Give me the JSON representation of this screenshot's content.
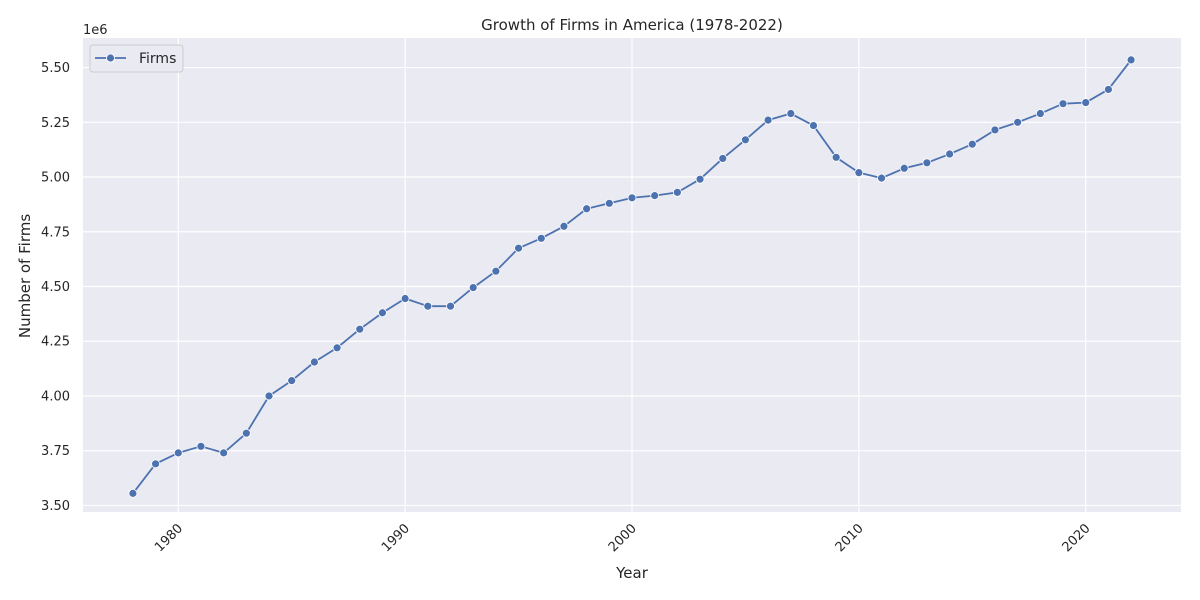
{
  "chart_data": {
    "type": "line",
    "title": "Growth of Firms in America (1978-2022)",
    "xlabel": "Year",
    "ylabel": "Number of Firms",
    "y_offset_text": "1e6",
    "xlim": [
      1975.8,
      2024.2
    ],
    "ylim": [
      3.47,
      5.635
    ],
    "x_ticks": [
      1980,
      1990,
      2000,
      2010,
      2020
    ],
    "y_ticks": [
      3.5,
      3.75,
      4.0,
      4.25,
      4.5,
      4.75,
      5.0,
      5.25,
      5.5
    ],
    "y_tick_labels": [
      "3.50",
      "3.75",
      "4.00",
      "4.25",
      "4.50",
      "4.75",
      "5.00",
      "5.25",
      "5.50"
    ],
    "grid": true,
    "legend_placement": "top-left",
    "series": [
      {
        "name": "Firms",
        "color": "#4c72b0",
        "x": [
          1978,
          1979,
          1980,
          1981,
          1982,
          1983,
          1984,
          1985,
          1986,
          1987,
          1988,
          1989,
          1990,
          1991,
          1992,
          1993,
          1994,
          1995,
          1996,
          1997,
          1998,
          1999,
          2000,
          2001,
          2002,
          2003,
          2004,
          2005,
          2006,
          2007,
          2008,
          2009,
          2010,
          2011,
          2012,
          2013,
          2014,
          2015,
          2016,
          2017,
          2018,
          2019,
          2020,
          2021,
          2022
        ],
        "y": [
          3.555,
          3.69,
          3.74,
          3.77,
          3.74,
          3.83,
          4.0,
          4.07,
          4.155,
          4.22,
          4.305,
          4.38,
          4.445,
          4.41,
          4.41,
          4.495,
          4.57,
          4.675,
          4.72,
          4.775,
          4.855,
          4.88,
          4.905,
          4.915,
          4.93,
          4.99,
          5.085,
          5.17,
          5.26,
          5.29,
          5.235,
          5.09,
          5.02,
          4.995,
          5.04,
          5.065,
          5.105,
          5.15,
          5.215,
          5.25,
          5.29,
          5.335,
          5.34,
          5.4,
          5.535
        ]
      }
    ]
  }
}
